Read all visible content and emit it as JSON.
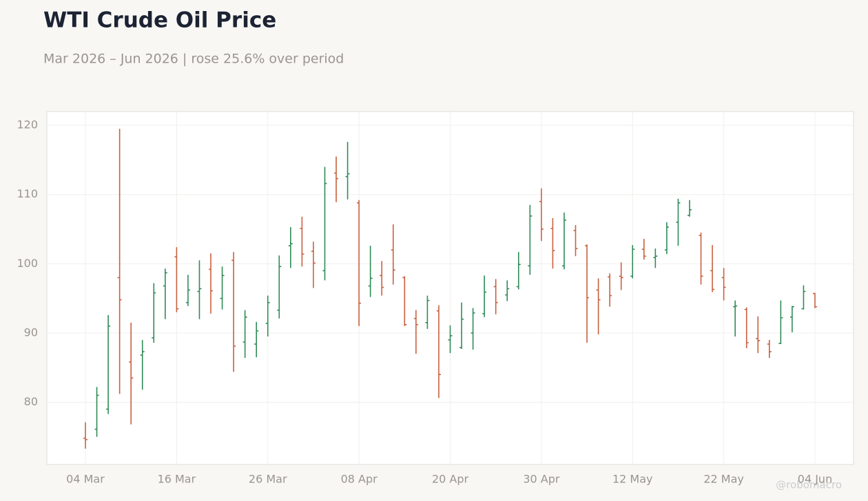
{
  "chart_data": {
    "type": "ohlc",
    "title": "WTI Crude Oil Price",
    "subtitle": "Mar 2026 – Jun 2026 | rose 25.6% over period",
    "watermark": "@robomacro",
    "categories": [
      "04 Mar",
      null,
      null,
      null,
      null,
      null,
      null,
      null,
      "16 Mar",
      null,
      null,
      null,
      null,
      null,
      null,
      null,
      "26 Mar",
      null,
      null,
      null,
      null,
      null,
      null,
      null,
      "08 Apr",
      null,
      null,
      null,
      null,
      null,
      null,
      null,
      "20 Apr",
      null,
      null,
      null,
      null,
      null,
      null,
      null,
      "30 Apr",
      null,
      null,
      null,
      null,
      null,
      null,
      null,
      "12 May",
      null,
      null,
      null,
      null,
      null,
      null,
      null,
      "22 May",
      null,
      null,
      null,
      null,
      null,
      null,
      null,
      "04 Jun"
    ],
    "open": [
      74.8,
      76.1,
      79.0,
      98.0,
      85.8,
      86.8,
      89.3,
      96.8,
      101.0,
      94.4,
      96.0,
      99.2,
      95.0,
      100.5,
      88.7,
      88.4,
      91.4,
      93.3,
      102.6,
      105.1,
      101.8,
      99.0,
      113.1,
      112.6,
      108.8,
      96.8,
      98.3,
      102.0,
      98.0,
      92.1,
      91.5,
      93.2,
      89.0,
      87.9,
      90.0,
      92.8,
      96.7,
      95.5,
      96.7,
      99.7,
      109.0,
      105.1,
      99.7,
      104.8,
      102.6,
      96.2,
      98.1,
      98.2,
      98.2,
      102.1,
      100.9,
      102.0,
      106.0,
      107.0,
      104.1,
      99.0,
      98.0,
      93.8,
      93.4,
      89.2,
      88.4,
      88.5,
      92.3,
      93.5,
      95.7
    ],
    "high": [
      77.1,
      82.2,
      92.6,
      119.5,
      91.5,
      89.0,
      97.2,
      99.3,
      102.4,
      98.4,
      100.5,
      101.5,
      99.6,
      101.7,
      93.3,
      91.6,
      95.4,
      101.2,
      105.3,
      106.8,
      103.2,
      114.0,
      115.5,
      117.6,
      109.2,
      102.6,
      100.4,
      105.7,
      98.2,
      93.3,
      95.4,
      94.0,
      91.1,
      94.4,
      93.6,
      98.3,
      97.8,
      97.6,
      101.7,
      108.5,
      110.9,
      106.6,
      107.4,
      105.6,
      102.8,
      97.9,
      98.6,
      100.2,
      102.7,
      103.6,
      102.2,
      106.0,
      109.4,
      109.2,
      104.5,
      102.7,
      99.4,
      94.7,
      93.7,
      92.4,
      89.0,
      94.7,
      93.9,
      96.9,
      95.8
    ],
    "low": [
      73.3,
      75.0,
      78.3,
      81.2,
      76.8,
      81.8,
      88.6,
      92.0,
      93.0,
      93.9,
      92.0,
      92.8,
      93.4,
      84.4,
      86.4,
      86.5,
      89.5,
      92.1,
      99.4,
      99.6,
      96.5,
      97.6,
      108.9,
      109.3,
      91.0,
      95.2,
      95.4,
      97.0,
      91.0,
      87.0,
      90.6,
      80.6,
      87.1,
      87.7,
      87.6,
      92.3,
      92.7,
      94.6,
      96.3,
      98.4,
      103.3,
      99.3,
      99.2,
      101.1,
      88.6,
      89.8,
      93.8,
      96.2,
      97.9,
      100.6,
      99.4,
      101.4,
      102.6,
      106.8,
      97.0,
      95.9,
      94.7,
      89.5,
      87.8,
      87.1,
      86.4,
      88.4,
      90.1,
      93.4,
      93.6
    ],
    "close": [
      74.6,
      81.0,
      91.0,
      94.8,
      83.5,
      87.3,
      95.8,
      98.7,
      93.5,
      96.2,
      96.4,
      96.1,
      98.3,
      88.1,
      92.3,
      90.3,
      94.4,
      99.6,
      102.9,
      101.4,
      100.1,
      111.6,
      112.3,
      113.0,
      94.3,
      97.9,
      96.6,
      99.1,
      91.2,
      91.2,
      94.7,
      84.0,
      89.6,
      92.0,
      92.9,
      95.9,
      94.4,
      96.4,
      99.9,
      106.9,
      105.0,
      101.9,
      106.3,
      102.2,
      95.1,
      94.8,
      95.4,
      98.0,
      102.1,
      101.1,
      101.1,
      105.3,
      108.8,
      107.8,
      98.2,
      96.3,
      96.6,
      93.9,
      88.6,
      88.9,
      87.3,
      92.2,
      93.8,
      96.0,
      93.8
    ],
    "up_color": "#2e8b57",
    "down_color": "#c8603f",
    "ylim": [
      71,
      122
    ],
    "yticks": [
      80,
      90,
      100,
      110,
      120
    ],
    "grid": true
  }
}
